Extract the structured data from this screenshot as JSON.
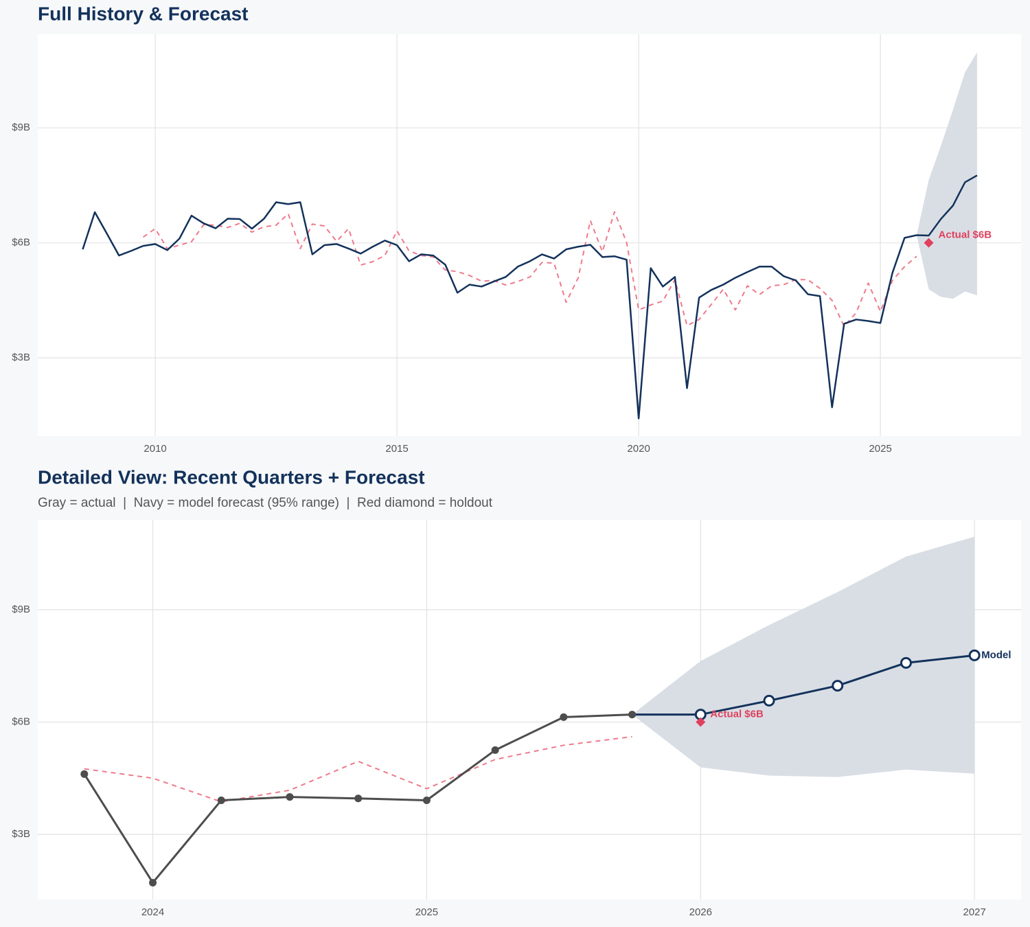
{
  "chart_data": [
    {
      "type": "line",
      "title": "Full History & Forecast",
      "xlim": [
        2007.57,
        2027.91
      ],
      "ylim": [
        0.96,
        11.44
      ],
      "xticks": [
        2010,
        2015,
        2020,
        2025
      ],
      "yticks": [
        {
          "value": 3,
          "label": "$3B"
        },
        {
          "value": 6,
          "label": "$6B"
        },
        {
          "value": 9,
          "label": "$9B"
        }
      ],
      "grid": true,
      "band": {
        "color": "#d9dee5",
        "x": [
          2025.75,
          2026,
          2026.25,
          2026.5,
          2026.75,
          2027
        ],
        "lower": [
          6.2,
          4.79,
          4.59,
          4.54,
          4.73,
          4.63
        ],
        "upper": [
          6.2,
          7.64,
          8.53,
          9.47,
          10.45,
          10.97
        ]
      },
      "series": [
        {
          "color": "#ee7a8c",
          "dashed": true,
          "x": [
            2009.75,
            2010,
            2010.25,
            2010.5,
            2010.75,
            2011,
            2011.25,
            2011.5,
            2011.75,
            2012,
            2012.25,
            2012.5,
            2012.75,
            2013,
            2013.25,
            2013.5,
            2013.75,
            2014,
            2014.25,
            2014.5,
            2014.75,
            2015,
            2015.25,
            2015.5,
            2015.75,
            2016,
            2016.25,
            2016.5,
            2016.75,
            2017,
            2017.25,
            2017.5,
            2017.75,
            2018,
            2018.25,
            2018.5,
            2018.75,
            2019,
            2019.25,
            2019.5,
            2019.75,
            2020,
            2020.25,
            2020.5,
            2020.75,
            2021,
            2021.25,
            2021.5,
            2021.75,
            2022,
            2022.25,
            2022.5,
            2022.75,
            2023,
            2023.25,
            2023.5,
            2023.75,
            2024,
            2024.25,
            2024.5,
            2024.75,
            2025,
            2025.25,
            2025.5,
            2025.75
          ],
          "values": [
            6.15,
            6.37,
            5.85,
            5.94,
            6.03,
            6.47,
            6.46,
            6.4,
            6.51,
            6.28,
            6.42,
            6.46,
            6.76,
            5.85,
            6.49,
            6.44,
            6.04,
            6.37,
            5.42,
            5.51,
            5.67,
            6.31,
            5.79,
            5.67,
            5.63,
            5.29,
            5.25,
            5.15,
            5.0,
            5.02,
            4.9,
            4.99,
            5.11,
            5.49,
            5.47,
            4.45,
            5.09,
            6.58,
            5.77,
            6.81,
            6.01,
            4.25,
            4.38,
            4.48,
            5.04,
            3.84,
            4.0,
            4.39,
            4.79,
            4.25,
            4.88,
            4.65,
            4.88,
            4.91,
            5.04,
            5.04,
            4.81,
            4.5,
            3.82,
            4.18,
            4.95,
            4.21,
            5.02,
            5.38,
            5.65
          ]
        },
        {
          "color": "#13325b",
          "x": [
            2008.5,
            2008.75,
            2009,
            2009.25,
            2009.5,
            2009.75,
            2010,
            2010.25,
            2010.5,
            2010.75,
            2011,
            2011.25,
            2011.5,
            2011.75,
            2012,
            2012.25,
            2012.5,
            2012.75,
            2013,
            2013.25,
            2013.5,
            2013.75,
            2014,
            2014.25,
            2014.5,
            2014.75,
            2015,
            2015.25,
            2015.5,
            2015.75,
            2016,
            2016.25,
            2016.5,
            2016.75,
            2017,
            2017.25,
            2017.5,
            2017.75,
            2018,
            2018.25,
            2018.5,
            2018.75,
            2019,
            2019.25,
            2019.5,
            2019.75,
            2020,
            2020.25,
            2020.5,
            2020.75,
            2021,
            2021.25,
            2021.5,
            2021.75,
            2022,
            2022.25,
            2022.5,
            2022.75,
            2023,
            2023.25,
            2023.5,
            2023.75,
            2024,
            2024.25,
            2024.5,
            2024.75,
            2025,
            2025.25,
            2025.5,
            2025.75,
            2026,
            2026.25,
            2026.5,
            2026.75,
            2027
          ],
          "values": [
            5.83,
            6.8,
            6.24,
            5.67,
            5.79,
            5.92,
            5.97,
            5.81,
            6.11,
            6.71,
            6.51,
            6.38,
            6.63,
            6.62,
            6.37,
            6.63,
            7.06,
            7.01,
            7.06,
            5.7,
            5.94,
            5.97,
            5.85,
            5.72,
            5.9,
            6.06,
            5.94,
            5.52,
            5.7,
            5.67,
            5.43,
            4.7,
            4.91,
            4.86,
            4.99,
            5.11,
            5.38,
            5.52,
            5.7,
            5.59,
            5.83,
            5.9,
            5.95,
            5.63,
            5.65,
            5.56,
            1.42,
            5.34,
            4.86,
            5.11,
            2.21,
            4.57,
            4.77,
            4.91,
            5.09,
            5.24,
            5.38,
            5.38,
            5.13,
            5.02,
            4.66,
            4.61,
            1.71,
            3.89,
            4.0,
            3.96,
            3.91,
            5.22,
            6.13,
            6.2,
            6.19,
            6.62,
            6.97,
            7.58,
            7.76
          ]
        }
      ],
      "annotations": [
        {
          "x": 2026,
          "y": 6,
          "label": "Actual $6B",
          "color": "#e0415e"
        }
      ]
    },
    {
      "type": "line",
      "title": "Detailed View: Recent Quarters + Forecast",
      "subtitle": "Gray = actual  |  Navy = model forecast (95% range)  |  Red diamond = holdout",
      "xlim": [
        2023.58,
        2027.17
      ],
      "ylim": [
        1.26,
        11.4
      ],
      "xticks": [
        2024,
        2025,
        2026,
        2027
      ],
      "yticks": [
        {
          "value": 3,
          "label": "$3B"
        },
        {
          "value": 6,
          "label": "$6B"
        },
        {
          "value": 9,
          "label": "$9B"
        }
      ],
      "grid": true,
      "band": {
        "color": "#d9dee5",
        "x": [
          2025.75,
          2026,
          2026.25,
          2026.5,
          2026.75,
          2027
        ],
        "lower": [
          6.2,
          4.79,
          4.57,
          4.53,
          4.73,
          4.62
        ],
        "upper": [
          6.2,
          7.63,
          8.59,
          9.47,
          10.42,
          10.95
        ]
      },
      "series": [
        {
          "color": "#ee7a8c",
          "dashed": true,
          "x": [
            2023.75,
            2024,
            2024.25,
            2024.5,
            2024.75,
            2025,
            2025.25,
            2025.5,
            2025.75
          ],
          "values": [
            4.75,
            4.5,
            3.87,
            4.18,
            4.95,
            4.22,
            5.0,
            5.38,
            5.61
          ]
        },
        {
          "color": "#4d4d4d",
          "marker": "filled",
          "x": [
            2023.75,
            2024,
            2024.25,
            2024.5,
            2024.75,
            2025,
            2025.25,
            2025.5,
            2025.75
          ],
          "values": [
            4.61,
            1.71,
            3.91,
            4.0,
            3.96,
            3.91,
            5.25,
            6.13,
            6.2
          ]
        },
        {
          "color": "#13325b",
          "marker": "open",
          "continues": 1,
          "end_label": "Model",
          "x": [
            2026,
            2026.25,
            2026.5,
            2026.75,
            2027
          ],
          "values": [
            6.2,
            6.57,
            6.97,
            7.58,
            7.78
          ]
        }
      ],
      "annotations": [
        {
          "x": 2026,
          "y": 6,
          "label": "Actual $6B",
          "color": "#e0415e"
        }
      ]
    }
  ]
}
